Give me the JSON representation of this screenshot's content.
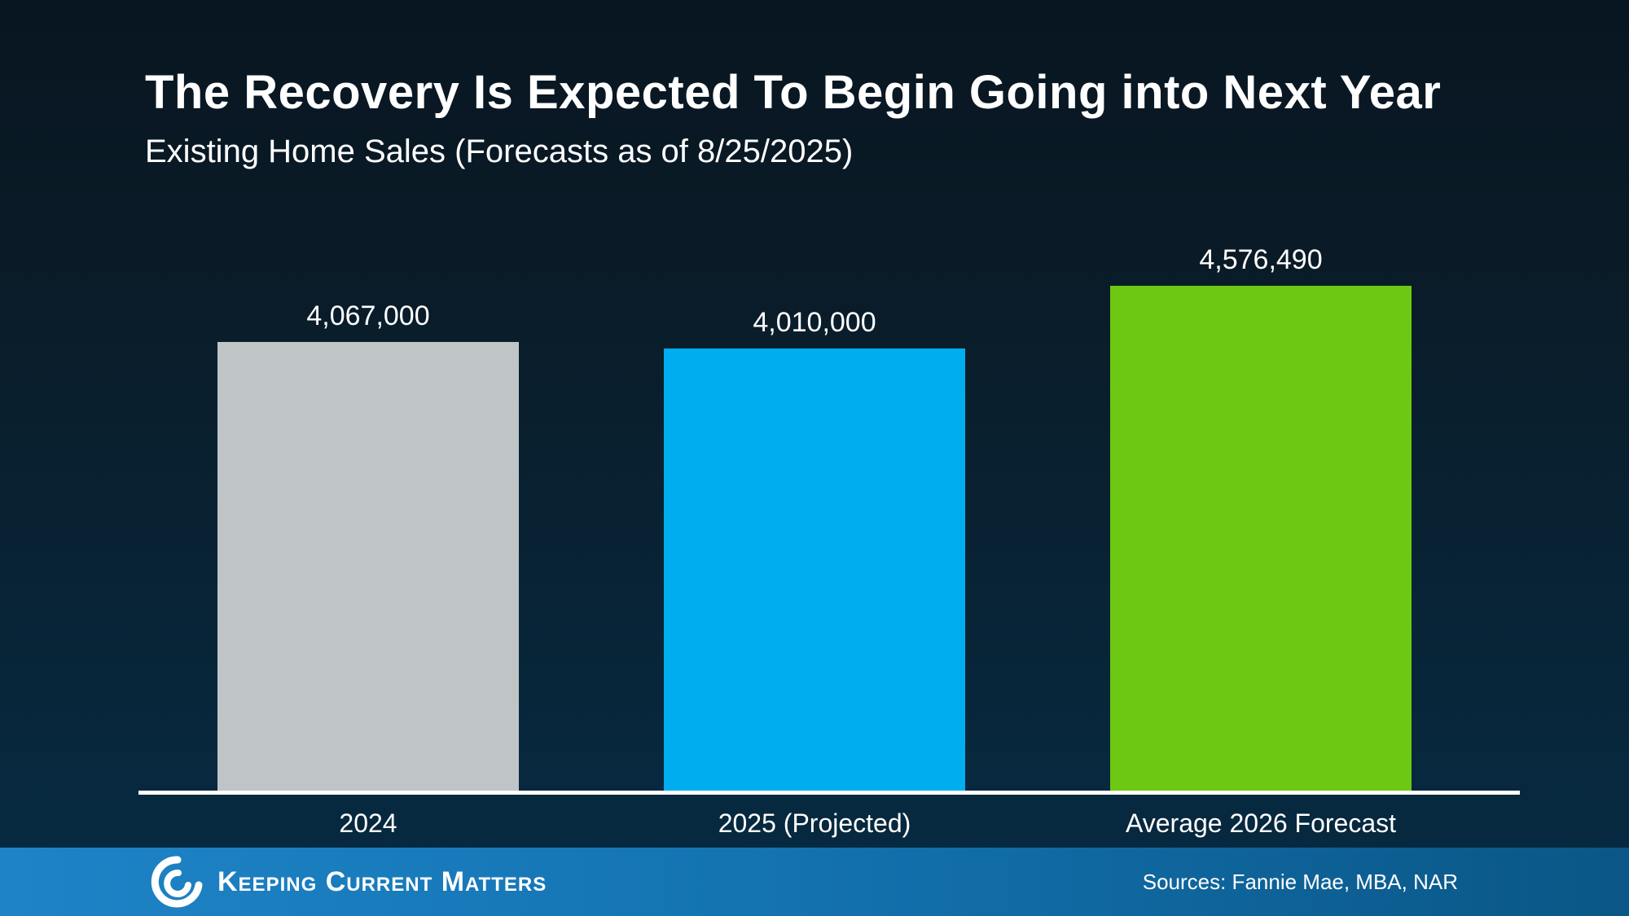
{
  "title": "The Recovery Is Expected To Begin Going into Next Year",
  "subtitle": "Existing Home Sales (Forecasts as of 8/25/2025)",
  "chart_data": {
    "type": "bar",
    "title": "The Recovery Is Expected To Begin Going into Next Year",
    "subtitle": "Existing Home Sales (Forecasts as of 8/25/2025)",
    "categories": [
      "2024",
      "2025 (Projected)",
      "Average 2026 Forecast"
    ],
    "values": [
      4067000,
      4010000,
      4576490
    ],
    "value_labels": [
      "4,067,000",
      "4,010,000",
      "4,576,490"
    ],
    "bar_colors": [
      "#bfc4c6",
      "#00aeef",
      "#6cc812"
    ],
    "xlabel": "",
    "ylabel": "",
    "ylim": [
      0,
      4576490
    ],
    "grid": false,
    "legend": false,
    "y_axis_visible": false,
    "baseline_color": "#ffffff",
    "label_color": "#ffffff"
  },
  "footer": {
    "brand": "Keeping Current Matters",
    "logo": "kcm-swirl-icon",
    "sources": "Sources: Fannie Mae, MBA, NAR",
    "bg_color_left": "#1e84c7",
    "bg_color_right": "#0a5686"
  },
  "colors": {
    "background_top": "#081621",
    "background_bottom": "#062a40",
    "text": "#ffffff"
  }
}
